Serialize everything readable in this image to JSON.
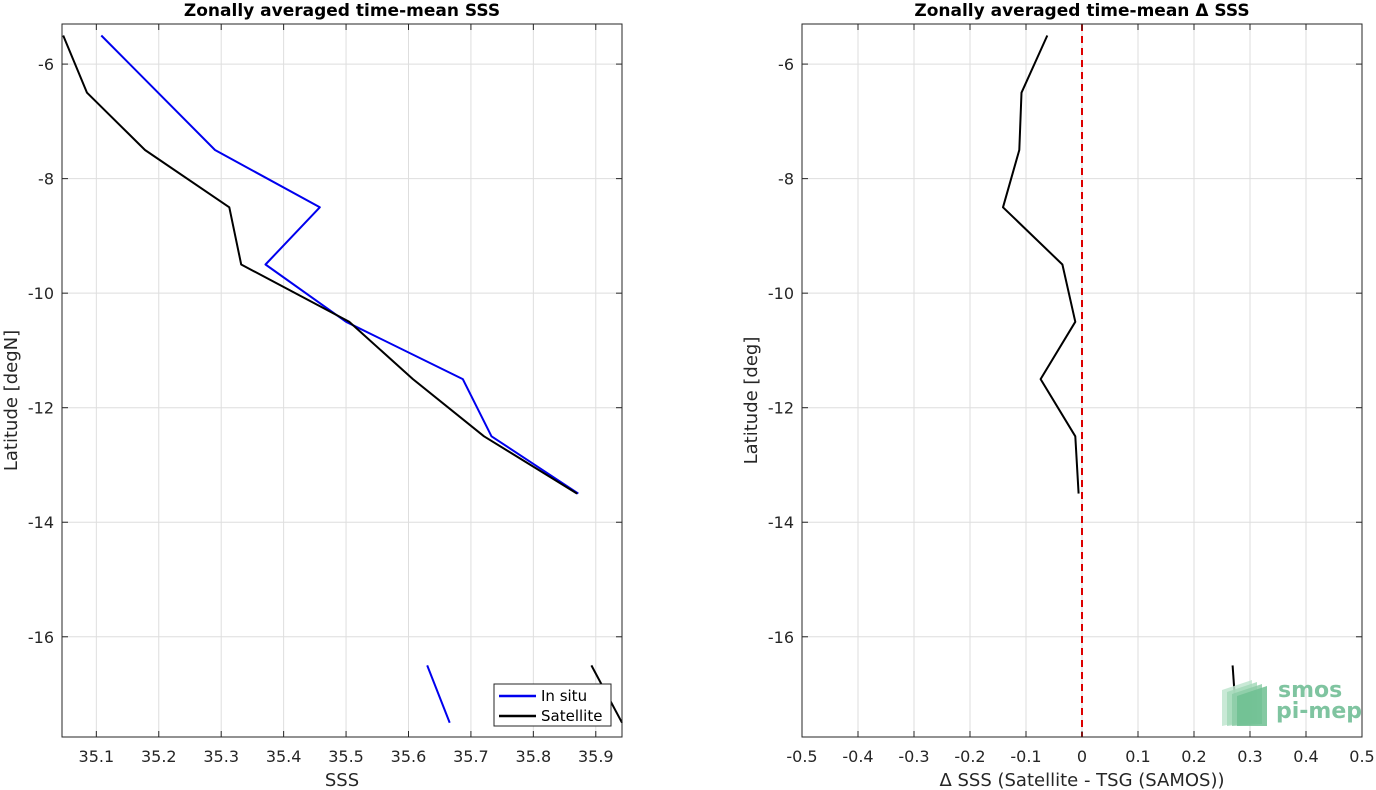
{
  "chart_data": [
    {
      "type": "line",
      "title": "Zonally averaged time-mean SSS",
      "xlabel": "SSS",
      "ylabel": "Latitude [degN]",
      "xlim": [
        35.045,
        35.942
      ],
      "ylim": [
        -17.75,
        -5.3
      ],
      "xticks": [
        35.1,
        35.2,
        35.3,
        35.4,
        35.5,
        35.6,
        35.7,
        35.8,
        35.9
      ],
      "yticks": [
        -6,
        -8,
        -10,
        -12,
        -14,
        -16
      ],
      "grid": true,
      "legend": "bottom-right",
      "series": [
        {
          "name": "In situ",
          "color": "#0000ee",
          "segments": [
            [
              [
                35.108,
                -5.5
              ],
              [
                35.29,
                -7.5
              ],
              [
                35.458,
                -8.5
              ],
              [
                35.371,
                -9.5
              ],
              [
                35.5,
                -10.5
              ],
              [
                35.687,
                -11.5
              ],
              [
                35.733,
                -12.5
              ],
              [
                35.872,
                -13.5
              ]
            ],
            [
              [
                35.63,
                -16.5
              ],
              [
                35.666,
                -17.5
              ]
            ]
          ]
        },
        {
          "name": "Satellite",
          "color": "#000000",
          "segments": [
            [
              [
                35.047,
                -5.5
              ],
              [
                35.085,
                -6.5
              ],
              [
                35.178,
                -7.5
              ],
              [
                35.313,
                -8.5
              ],
              [
                35.332,
                -9.5
              ],
              [
                35.505,
                -10.5
              ],
              [
                35.607,
                -11.5
              ],
              [
                35.721,
                -12.5
              ],
              [
                35.87,
                -13.5
              ]
            ],
            [
              [
                35.893,
                -16.5
              ],
              [
                35.942,
                -17.5
              ]
            ]
          ]
        }
      ]
    },
    {
      "type": "line",
      "title": "Zonally averaged time-mean Δ SSS",
      "xlabel": "Δ SSS (Satellite - TSG (SAMOS))",
      "ylabel": "Latitude [deg]",
      "xlim": [
        -0.5,
        0.5
      ],
      "ylim": [
        -17.75,
        -5.3
      ],
      "xticks": [
        -0.5,
        -0.4,
        -0.3,
        -0.2,
        -0.1,
        0,
        0.1,
        0.2,
        0.3,
        0.4,
        0.5
      ],
      "xtick_labels": [
        "-0.5",
        "-0.4",
        "-0.3",
        "-0.2",
        "-0.1",
        "0",
        "0.1",
        "0.2",
        "0.3",
        "0.4",
        "0.5"
      ],
      "yticks": [
        -6,
        -8,
        -10,
        -12,
        -14,
        -16
      ],
      "grid": true,
      "zero_line": {
        "x": 0,
        "color": "#dd0000",
        "style": "dashed"
      },
      "series": [
        {
          "color": "#000000",
          "segments": [
            [
              [
                -0.062,
                -5.5
              ],
              [
                -0.108,
                -6.5
              ],
              [
                -0.112,
                -7.5
              ],
              [
                -0.141,
                -8.5
              ],
              [
                -0.035,
                -9.5
              ],
              [
                -0.012,
                -10.5
              ],
              [
                -0.074,
                -11.5
              ],
              [
                -0.012,
                -12.5
              ],
              [
                -0.006,
                -13.5
              ]
            ],
            [
              [
                0.269,
                -16.5
              ],
              [
                0.276,
                -17.5
              ]
            ]
          ]
        }
      ]
    }
  ],
  "logo": {
    "line1": "smos",
    "line2": "pi-mep"
  }
}
